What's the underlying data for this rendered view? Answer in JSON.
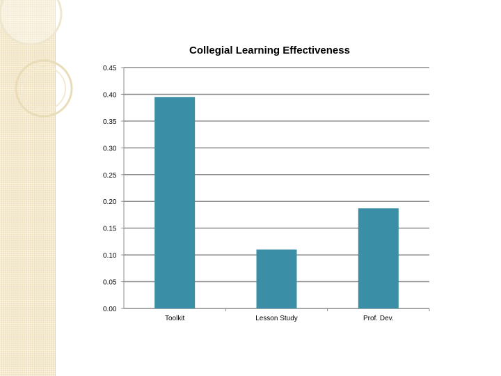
{
  "chart_data": {
    "type": "bar",
    "title": "Collegial Learning Effectiveness",
    "categories": [
      "Toolkit",
      "Lesson Study",
      "Prof. Dev."
    ],
    "values": [
      0.395,
      0.11,
      0.187
    ],
    "yticks": [
      "0.00",
      "0.05",
      "0.10",
      "0.15",
      "0.20",
      "0.25",
      "0.30",
      "0.35",
      "0.40",
      "0.45"
    ],
    "ylim": [
      0,
      0.45
    ],
    "grid": true,
    "legend": "none",
    "bar_color": "#3a8fa7"
  },
  "theme": {
    "strip_color": "#f1e3c2"
  }
}
